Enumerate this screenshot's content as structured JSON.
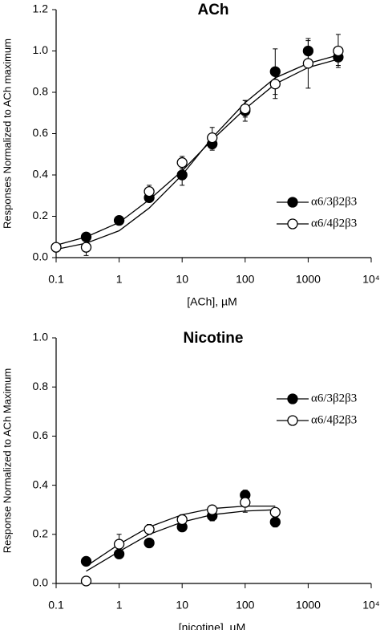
{
  "chart_data": [
    {
      "type": "scatter",
      "title": "ACh",
      "x_label": "[ACh], µM",
      "y_label": "Responses Normalized to ACh maximum",
      "log_x": true,
      "xlim": [
        0.1,
        10000
      ],
      "xticks": [
        0.1,
        1,
        10,
        100,
        1000,
        {
          "value": 10000,
          "label": "10⁴"
        }
      ],
      "ylim": [
        0,
        1.2
      ],
      "yticks": [
        {
          "value": 0,
          "label": "0.0"
        },
        0.2,
        0.4,
        0.6,
        0.8,
        {
          "value": 1,
          "label": "1.0"
        },
        1.2
      ],
      "legend": "right",
      "fit_x": [
        0.1,
        0.3,
        1,
        3,
        10,
        30,
        100,
        300,
        1000,
        3000
      ],
      "series": [
        {
          "name": "α6/3β2β3",
          "color": "#000000",
          "filled": true,
          "x": [
            0.3,
            1,
            3,
            10,
            30,
            100,
            300,
            1000,
            3000
          ],
          "values": [
            0.1,
            0.18,
            0.29,
            0.4,
            0.55,
            0.71,
            0.9,
            1.0,
            0.97
          ],
          "errors": [
            0.02,
            0.01,
            0.02,
            0.05,
            0.03,
            0.05,
            0.11,
            0.05,
            0.04
          ],
          "fit": [
            0.06,
            0.1,
            0.17,
            0.28,
            0.42,
            0.57,
            0.72,
            0.84,
            0.92,
            0.96
          ]
        },
        {
          "name": "α6/4β2β3",
          "color": "#000000",
          "filled": false,
          "x": [
            0.1,
            0.3,
            3,
            10,
            30,
            100,
            300,
            1000,
            3000
          ],
          "values": [
            0.05,
            0.05,
            0.32,
            0.46,
            0.58,
            0.72,
            0.84,
            0.94,
            1.0
          ],
          "errors": [
            0.01,
            0.04,
            0.03,
            0.03,
            0.05,
            0.04,
            0.07,
            0.12,
            0.08
          ],
          "fit": [
            0.04,
            0.07,
            0.13,
            0.24,
            0.4,
            0.58,
            0.75,
            0.87,
            0.94,
            0.98
          ]
        }
      ]
    },
    {
      "type": "scatter",
      "title": "Nicotine",
      "x_label": "[nicotine], µM",
      "y_label": "Response Normalized to ACh Maximum",
      "log_x": true,
      "xlim": [
        0.1,
        10000
      ],
      "xticks": [
        0.1,
        1,
        10,
        100,
        1000,
        {
          "value": 10000,
          "label": "10⁴"
        }
      ],
      "ylim": [
        0,
        1
      ],
      "yticks": [
        {
          "value": 0,
          "label": "0.0"
        },
        0.2,
        0.4,
        0.6,
        0.8,
        {
          "value": 1,
          "label": "1.0"
        }
      ],
      "legend": "right",
      "fit_x": [
        0.3,
        1,
        3,
        10,
        30,
        100,
        300
      ],
      "series": [
        {
          "name": "α6/3β2β3",
          "color": "#000000",
          "filled": true,
          "x": [
            0.3,
            1,
            3,
            10,
            30,
            100,
            300
          ],
          "values": [
            0.09,
            0.12,
            0.165,
            0.23,
            0.275,
            0.36,
            0.25
          ],
          "errors": [
            0.01,
            0.01,
            0.01,
            0.01,
            0.02,
            0.02,
            0.02
          ],
          "fit": [
            0.05,
            0.13,
            0.2,
            0.25,
            0.28,
            0.295,
            0.3
          ]
        },
        {
          "name": "α6/4β2β3",
          "color": "#000000",
          "filled": false,
          "x": [
            0.3,
            1,
            3,
            10,
            30,
            100,
            300
          ],
          "values": [
            0.01,
            0.16,
            0.22,
            0.26,
            0.3,
            0.33,
            0.29
          ],
          "errors": [
            0.01,
            0.04,
            0.02,
            0.02,
            0.01,
            0.04,
            0.01
          ],
          "fit": [
            0.07,
            0.16,
            0.23,
            0.28,
            0.305,
            0.315,
            0.315
          ]
        }
      ]
    }
  ]
}
